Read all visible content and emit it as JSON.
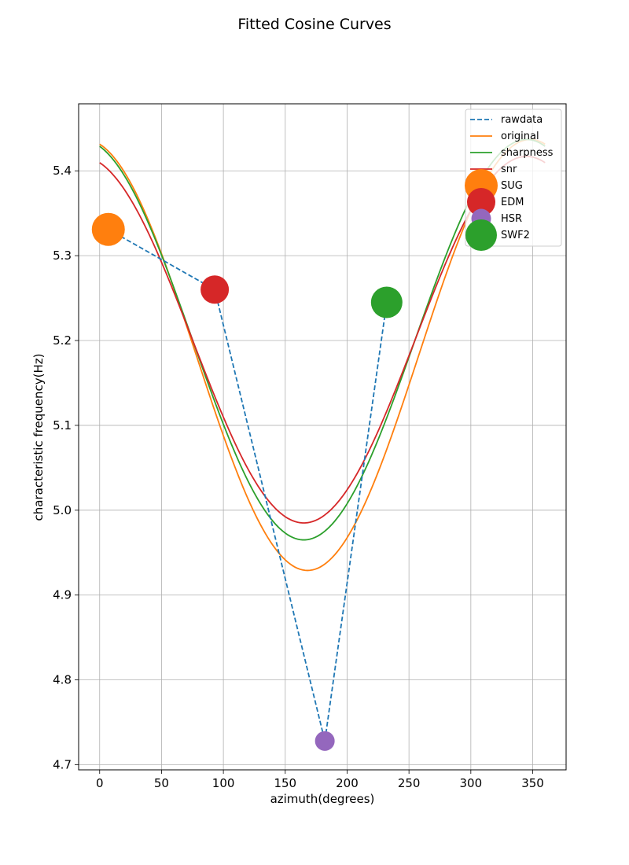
{
  "chart_data": {
    "type": "line",
    "title": "Fitted Cosine Curves",
    "xlabel": "azimuth(degrees)",
    "ylabel": "characteristic frequency(Hz)",
    "xlim": [
      -17,
      377
    ],
    "ylim": [
      4.694,
      5.479
    ],
    "xticks": [
      0,
      50,
      100,
      150,
      200,
      250,
      300,
      350
    ],
    "yticks": [
      4.7,
      4.8,
      4.9,
      5.0,
      5.1,
      5.2,
      5.3,
      5.4
    ],
    "xtick_labels": [
      "0",
      "50",
      "100",
      "150",
      "200",
      "250",
      "300",
      "350"
    ],
    "ytick_labels": [
      "4.7",
      "4.8",
      "4.9",
      "5.0",
      "5.1",
      "5.2",
      "5.3",
      "5.4"
    ],
    "grid": true,
    "legend_position": "top-right",
    "rawdata": {
      "name": "rawdata",
      "color": "#1f77b4",
      "style": "dashed",
      "x": [
        7,
        93,
        182,
        232
      ],
      "y": [
        5.331,
        5.26,
        4.728,
        5.245
      ]
    },
    "curves": [
      {
        "name": "original",
        "color": "#ff7f0e",
        "mean": 5.183,
        "amplitude": 0.254,
        "phase": 348,
        "x_range": [
          0,
          360
        ]
      },
      {
        "name": "sharpness",
        "color": "#2ca02c",
        "mean": 5.201,
        "amplitude": 0.236,
        "phase": 345,
        "x_range": [
          0,
          360
        ]
      },
      {
        "name": "snr",
        "color": "#d62728",
        "mean": 5.201,
        "amplitude": 0.216,
        "phase": 345,
        "x_range": [
          0,
          360
        ]
      }
    ],
    "stations": [
      {
        "name": "SUG",
        "color": "#ff7f0e",
        "x": 7,
        "y": 5.331,
        "size": 21
      },
      {
        "name": "EDM",
        "color": "#d62728",
        "x": 93,
        "y": 5.26,
        "size": 18
      },
      {
        "name": "HSR",
        "color": "#9467bd",
        "x": 182,
        "y": 4.728,
        "size": 12.5
      },
      {
        "name": "SWF2",
        "color": "#2ca02c",
        "x": 232,
        "y": 5.245,
        "size": 20
      }
    ],
    "legend": [
      "rawdata",
      "original",
      "sharpness",
      "snr",
      "SUG",
      "EDM",
      "HSR",
      "SWF2"
    ]
  }
}
